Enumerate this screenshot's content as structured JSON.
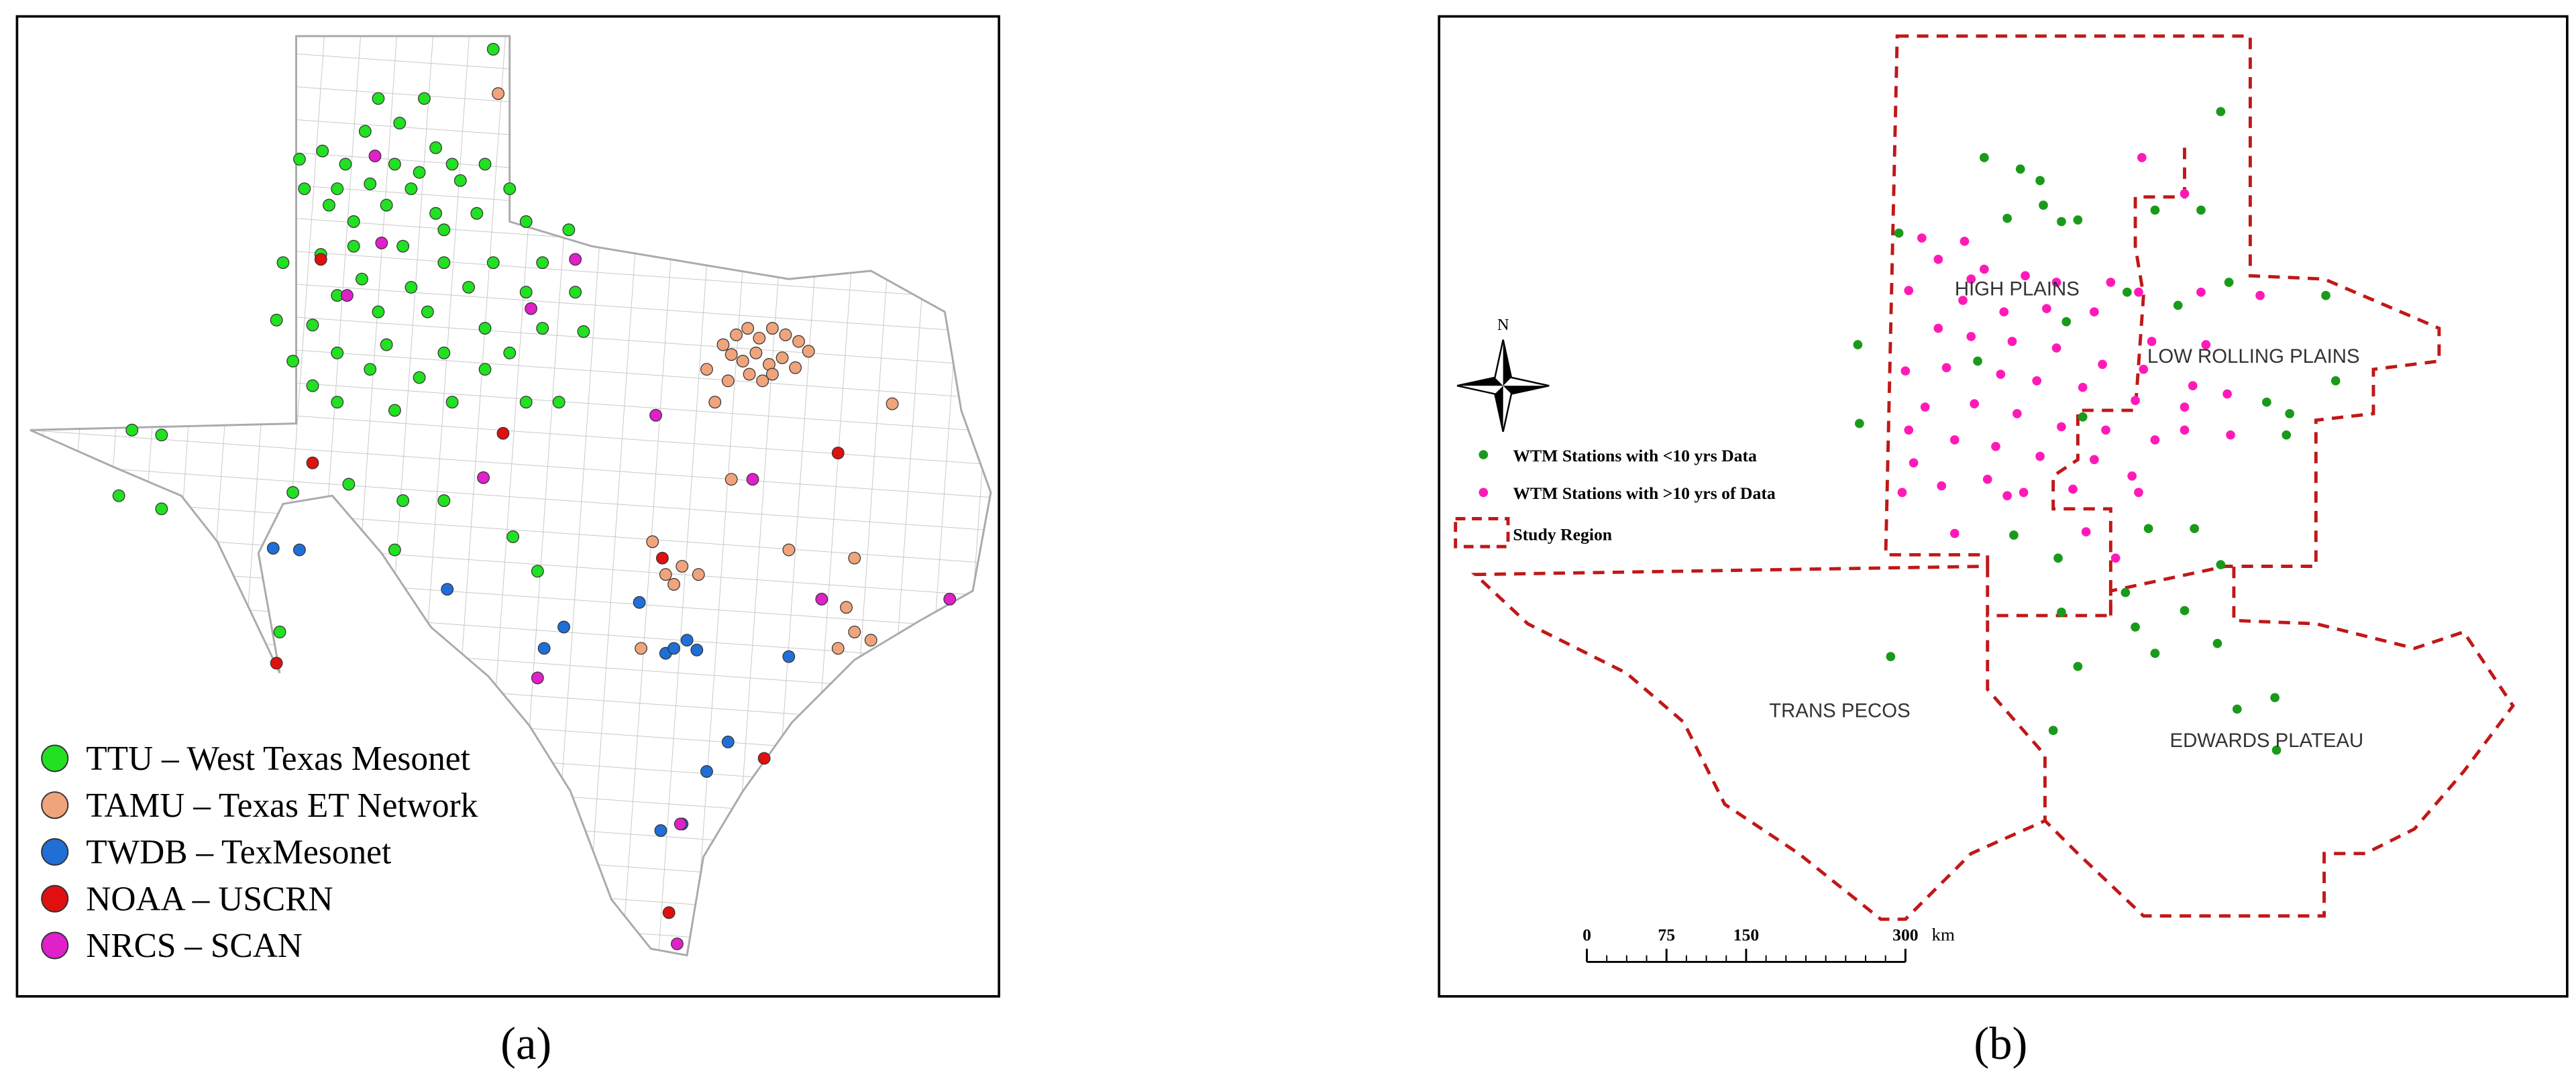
{
  "panels": [
    {
      "caption": "(a)",
      "legend": [
        {
          "label": "TTU – West Texas Mesonet",
          "color": "#22e022"
        },
        {
          "label": "TAMU – Texas ET Network",
          "color": "#f0a47c"
        },
        {
          "label": "TWDB – TexMesonet",
          "color": "#1f6fd6"
        },
        {
          "label": "NOAA – USCRN",
          "color": "#e01010"
        },
        {
          "label": "NRCS – SCAN",
          "color": "#e020c8"
        }
      ]
    },
    {
      "caption": "(b)",
      "legend": [
        {
          "label": "WTM Stations with <10 yrs Data",
          "color": "#1a9a1a"
        },
        {
          "label": "WTM Stations with >10 yrs of Data",
          "color": "#ff1ab8"
        },
        {
          "label": "Study Region",
          "color": "#c01818"
        }
      ],
      "regions": [
        "HIGH PLAINS",
        "LOW ROLLING PLAINS",
        "TRANS PECOS",
        "EDWARDS PLATEAU"
      ],
      "north": "N",
      "scale_bar": {
        "ticks": [
          0,
          75,
          150,
          300
        ],
        "unit": "km"
      }
    }
  ]
}
